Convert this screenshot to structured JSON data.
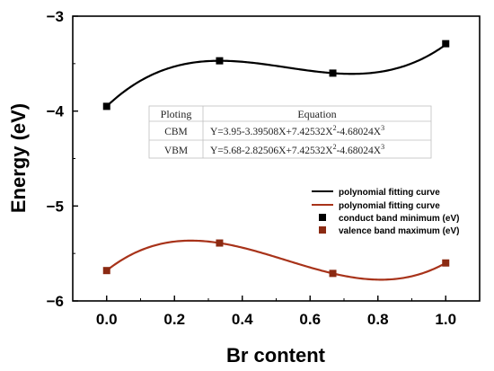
{
  "chart_data": {
    "type": "line",
    "xlabel": "Br content",
    "ylabel": "Energy (eV)",
    "xlim": [
      -0.1,
      1.1
    ],
    "ylim": [
      -6,
      -3
    ],
    "x_ticks": [
      "0.0",
      "0.2",
      "0.4",
      "0.6",
      "0.8",
      "1.0"
    ],
    "y_ticks": [
      "−3",
      "−4",
      "−5",
      "−6"
    ],
    "grid": false,
    "legend_position": "bottom-right",
    "series": [
      {
        "name": "conduct band minimum (eV)",
        "kind": "scatter",
        "marker": "square",
        "color": "#000000",
        "x": [
          0,
          0.333,
          0.667,
          1.0
        ],
        "y": [
          -3.95,
          -3.47,
          -3.6,
          -3.29
        ]
      },
      {
        "name": "valence band maximum (eV)",
        "kind": "scatter",
        "marker": "square",
        "color": "#8b2a12",
        "x": [
          0,
          0.333,
          0.667,
          1.0
        ],
        "y": [
          -5.68,
          -5.39,
          -5.71,
          -5.6
        ]
      },
      {
        "name": "polynomial fitting curve",
        "kind": "fit",
        "color": "#000000",
        "coeffs": [
          -3.95,
          3.39508,
          -7.42532,
          4.68024
        ]
      },
      {
        "name": "polynomial fitting curve",
        "kind": "fit",
        "color": "#a8331a",
        "coeffs": [
          -5.68,
          2.82506,
          -7.42532,
          4.68024
        ]
      }
    ],
    "equation_table": {
      "headers": [
        "Ploting",
        "Equation"
      ],
      "rows": [
        {
          "label": "CBM",
          "prefix": "Y=3.95-3.39508X+7.42532X",
          "mid": "-4.68024X",
          "sup1": "2",
          "sup2": "3"
        },
        {
          "label": "VBM",
          "prefix": "Y=5.68-2.82506X+7.42532X",
          "mid": "-4.68024X",
          "sup1": "2",
          "sup2": "3"
        }
      ]
    }
  }
}
